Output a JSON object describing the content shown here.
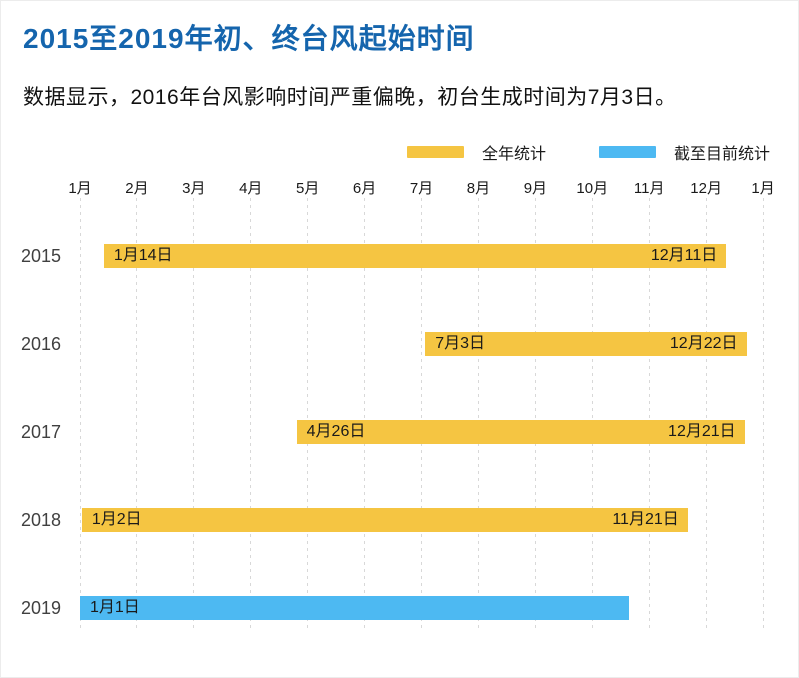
{
  "header": {
    "title": "2015至2019年初、终台风起始时间",
    "subtitle": "数据显示，2016年台风影响时间严重偏晚，初台生成时间为7月3日。"
  },
  "colors": {
    "title": "#1565AD",
    "full_year": "#F5C542",
    "to_date": "#4DB9F2",
    "gridline": "#D8D8D8",
    "text": "#1A1A1A"
  },
  "chart_data": {
    "type": "gantt",
    "title": "2015至2019年初、终台风起始时间",
    "x_axis": {
      "unit": "month",
      "tick_labels": [
        "1月",
        "2月",
        "3月",
        "4月",
        "5月",
        "6月",
        "7月",
        "8月",
        "9月",
        "10月",
        "11月",
        "12月",
        "1月"
      ],
      "grid": "dashed-vertical"
    },
    "legend": [
      {
        "label": "全年统计",
        "colorKey": "full_year"
      },
      {
        "label": "截至目前统计",
        "colorKey": "to_date"
      }
    ],
    "legend_position": "top",
    "rows": [
      {
        "year": "2015",
        "series": "全年统计",
        "start_month": 1,
        "start_day": 14,
        "start_label": "1月14日",
        "end_month": 12,
        "end_day": 11,
        "end_label": "12月11日"
      },
      {
        "year": "2016",
        "series": "全年统计",
        "start_month": 7,
        "start_day": 3,
        "start_label": "7月3日",
        "end_month": 12,
        "end_day": 22,
        "end_label": "12月22日"
      },
      {
        "year": "2017",
        "series": "全年统计",
        "start_month": 4,
        "start_day": 26,
        "start_label": "4月26日",
        "end_month": 12,
        "end_day": 21,
        "end_label": "12月21日"
      },
      {
        "year": "2018",
        "series": "全年统计",
        "start_month": 1,
        "start_day": 2,
        "start_label": "1月2日",
        "end_month": 11,
        "end_day": 21,
        "end_label": "11月21日"
      },
      {
        "year": "2019",
        "series": "截至目前统计",
        "start_month": 1,
        "start_day": 1,
        "start_label": "1月1日",
        "end_month": 10,
        "end_day": 20,
        "end_label": ""
      }
    ]
  }
}
